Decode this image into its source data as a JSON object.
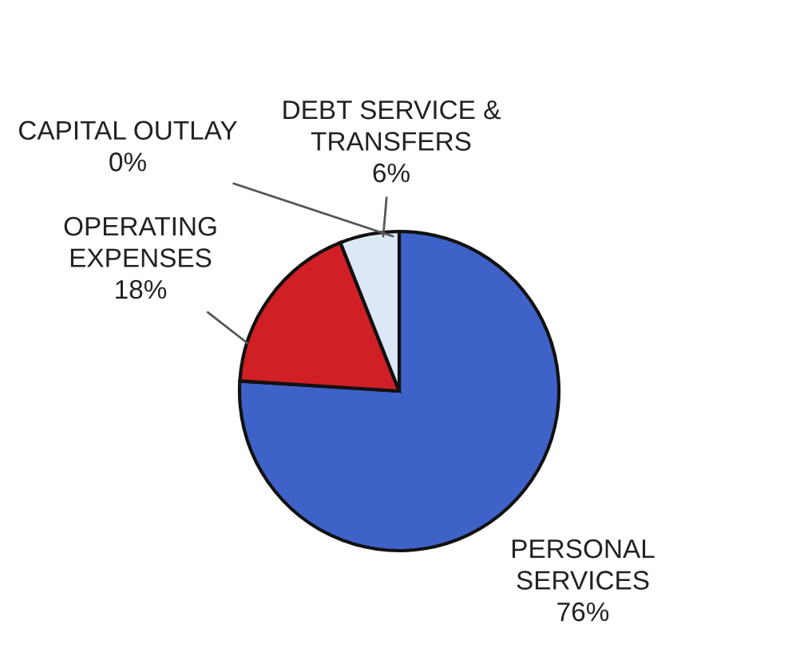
{
  "chart_data": {
    "type": "pie",
    "categories": [
      "PERSONAL\nSERVICES",
      "OPERATING\nEXPENSES",
      "CAPITAL OUTLAY",
      "DEBT SERVICE &\nTRANSFERS"
    ],
    "values": [
      76,
      18,
      0,
      6
    ],
    "colors": [
      "#3f62c8",
      "#d01f25",
      "#1a1a1a",
      "#dce8f6"
    ],
    "value_labels": [
      "76%",
      "18%",
      "0%",
      "6%"
    ]
  }
}
